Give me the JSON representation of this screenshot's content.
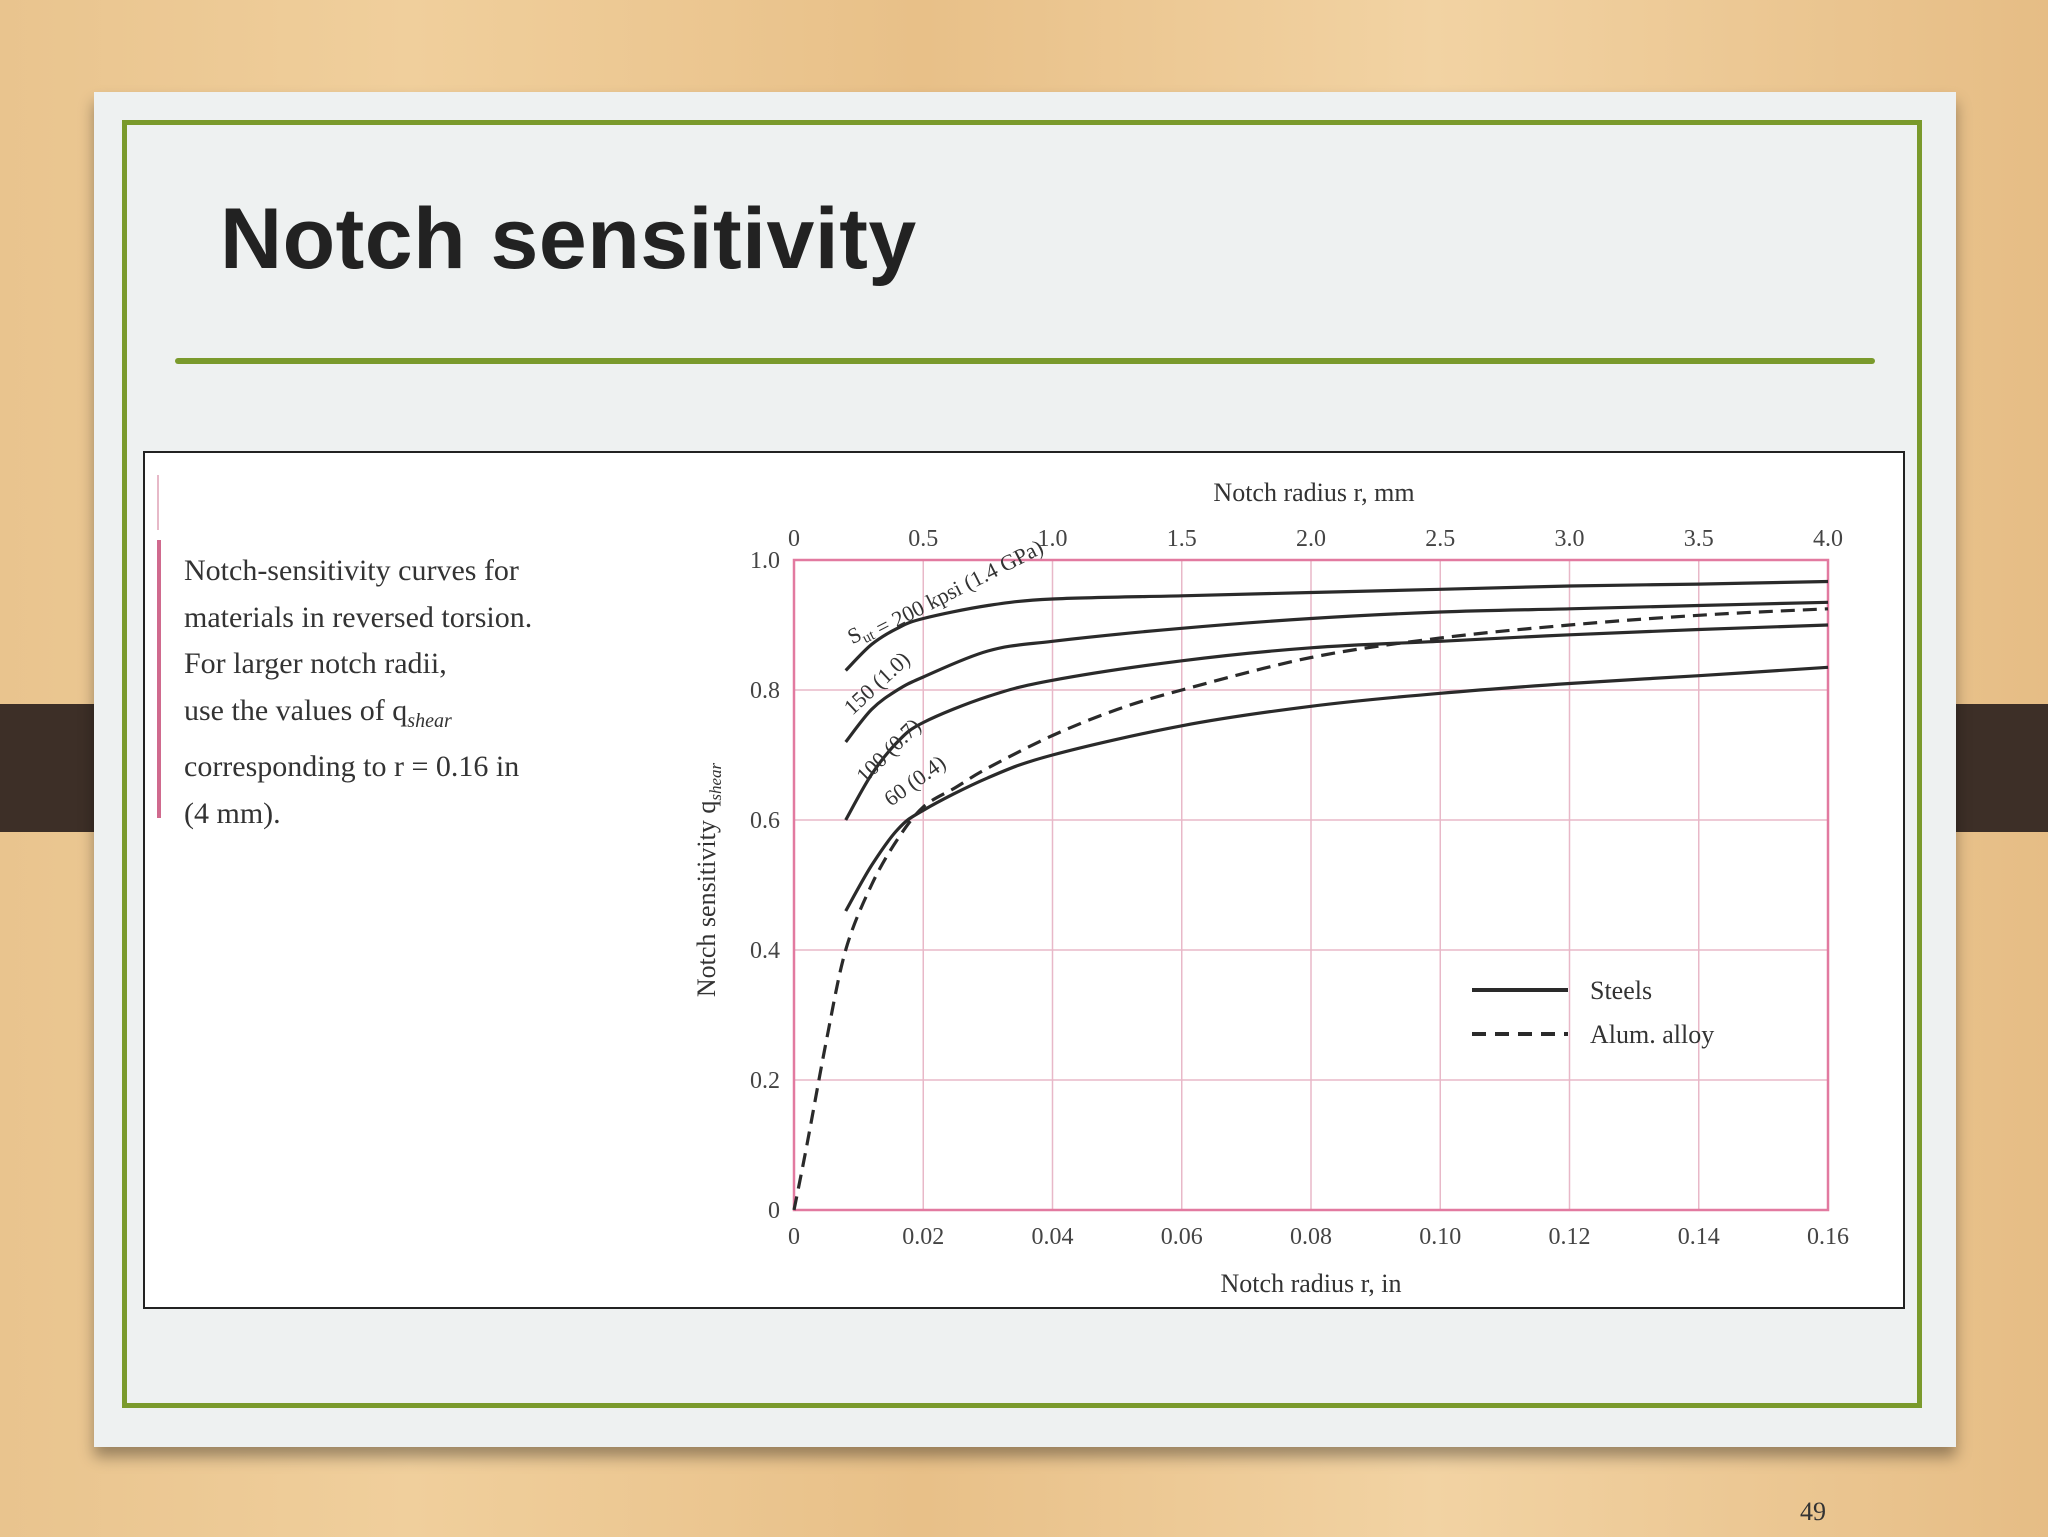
{
  "slide": {
    "title": "Notch sensitivity",
    "page_number": "49",
    "caption_lines": [
      "Notch-sensitivity curves for",
      "materials in reversed torsion.",
      "For larger notch radii,",
      "use the values of q",
      "corresponding to r = 0.16 in",
      "(4 mm)."
    ],
    "caption_subscript": "shear",
    "colors": {
      "frame": "#7a9a2c",
      "grid": "#e8b8c8",
      "plot_border": "#e27aa0",
      "curve": "#2a2a2a"
    }
  },
  "chart_data": {
    "type": "line",
    "title": "",
    "xlabel": "Notch radius r, in",
    "x2label": "Notch radius r, mm",
    "ylabel": "Notch sensitivity q",
    "ylabel_subscript": "shear",
    "xlim": [
      0,
      0.16
    ],
    "ylim": [
      0,
      1.0
    ],
    "x2lim": [
      0,
      4.0
    ],
    "x_ticks": [
      "0",
      "0.02",
      "0.04",
      "0.06",
      "0.08",
      "0.10",
      "0.12",
      "0.14",
      "0.16"
    ],
    "x2_ticks": [
      "0",
      "0.5",
      "1.0",
      "1.5",
      "2.0",
      "2.5",
      "3.0",
      "3.5",
      "4.0"
    ],
    "y_ticks": [
      "0",
      "0.2",
      "0.4",
      "0.6",
      "0.8",
      "1.0"
    ],
    "grid": true,
    "legend": {
      "position": "bottom-right",
      "entries": [
        {
          "label": "Steels",
          "style": "solid"
        },
        {
          "label": "Alum. alloy",
          "style": "dashed"
        }
      ]
    },
    "series": [
      {
        "label_lines": [
          "S",
          "= 200 kpsi",
          "(1.4 GPa)"
        ],
        "label_sub": "ut",
        "style": "solid",
        "x": [
          0.008,
          0.012,
          0.016,
          0.02,
          0.03,
          0.04,
          0.06,
          0.08,
          0.1,
          0.12,
          0.14,
          0.16
        ],
        "y": [
          0.83,
          0.87,
          0.895,
          0.91,
          0.93,
          0.94,
          0.945,
          0.95,
          0.955,
          0.96,
          0.963,
          0.967
        ]
      },
      {
        "label_lines": [
          "150",
          "(1.0)"
        ],
        "style": "solid",
        "x": [
          0.008,
          0.012,
          0.016,
          0.02,
          0.03,
          0.04,
          0.06,
          0.08,
          0.1,
          0.12,
          0.14,
          0.16
        ],
        "y": [
          0.72,
          0.77,
          0.8,
          0.82,
          0.86,
          0.875,
          0.895,
          0.91,
          0.92,
          0.925,
          0.93,
          0.935
        ]
      },
      {
        "label_lines": [
          "100",
          "(0.7)"
        ],
        "style": "solid",
        "x": [
          0.008,
          0.012,
          0.016,
          0.02,
          0.03,
          0.04,
          0.06,
          0.08,
          0.1,
          0.12,
          0.14,
          0.16
        ],
        "y": [
          0.6,
          0.67,
          0.72,
          0.75,
          0.79,
          0.815,
          0.845,
          0.865,
          0.875,
          0.885,
          0.893,
          0.9
        ]
      },
      {
        "label_lines": [
          "60",
          "(0.4)"
        ],
        "style": "solid",
        "x": [
          0.008,
          0.012,
          0.016,
          0.02,
          0.03,
          0.04,
          0.06,
          0.08,
          0.1,
          0.12,
          0.14,
          0.16
        ],
        "y": [
          0.46,
          0.53,
          0.585,
          0.615,
          0.665,
          0.7,
          0.745,
          0.775,
          0.795,
          0.81,
          0.822,
          0.835
        ]
      },
      {
        "label_lines": [],
        "style": "dashed",
        "x": [
          0,
          0.002,
          0.005,
          0.008,
          0.012,
          0.016,
          0.02,
          0.025,
          0.03,
          0.04,
          0.05,
          0.06,
          0.08,
          0.1,
          0.12,
          0.14,
          0.16
        ],
        "y": [
          0,
          0.1,
          0.26,
          0.4,
          0.5,
          0.57,
          0.62,
          0.65,
          0.68,
          0.73,
          0.77,
          0.8,
          0.85,
          0.88,
          0.9,
          0.915,
          0.925
        ]
      }
    ]
  }
}
